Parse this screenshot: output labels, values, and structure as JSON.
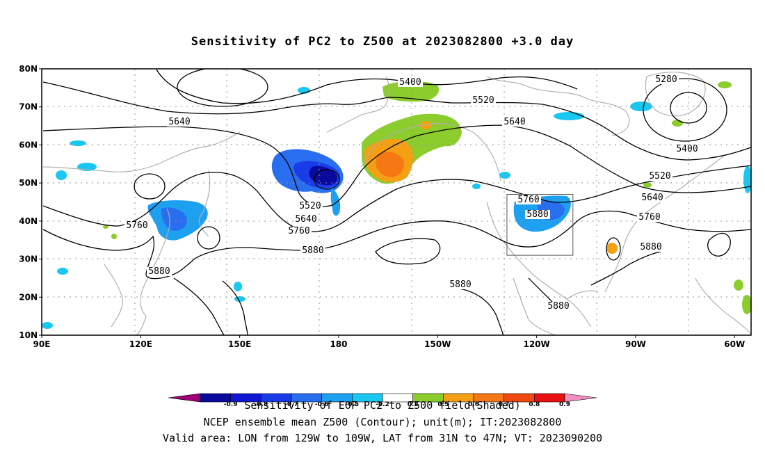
{
  "title": "Sensitivity of PC2 to Z500 at 2023082800 +3.0 day",
  "footer": {
    "line1": "Sensitivity of EOF PC2 to Z500 field(Shaded)",
    "line2": "NCEP ensemble mean Z500 (Contour); unit(m); IT:2023082800",
    "line3": "Valid area: LON from 129W to 109W, LAT from 31N to 47N; VT: 2023090200"
  },
  "map": {
    "lon_labels": [
      "90E",
      "120E",
      "150E",
      "180",
      "150W",
      "120W",
      "90W",
      "60W"
    ],
    "lat_labels": [
      "80N",
      "70N",
      "60N",
      "50N",
      "40N",
      "30N",
      "20N",
      "10N"
    ],
    "contour_labels": [
      "5280",
      "5400",
      "5400",
      "5520",
      "5520",
      "5520",
      "5640",
      "5640",
      "5640",
      "5640",
      "5760",
      "5760",
      "5760",
      "5760",
      "5880",
      "5880",
      "5880",
      "5880",
      "5880",
      "5880"
    ],
    "valid_box": {
      "lon_min": -129,
      "lon_max": -109,
      "lat_min": 31,
      "lat_max": 47
    }
  },
  "colorbar": {
    "labels": [
      "-0.9",
      "-0.8",
      "-0.7",
      "-0.6",
      "-0.5",
      "-0.2",
      "0.2",
      "0.5",
      "0.6",
      "0.7",
      "0.8",
      "0.9"
    ],
    "colors": [
      "#a0007a",
      "#0a0a9e",
      "#1018d4",
      "#1a3ce8",
      "#2a6ef0",
      "#1ea0f0",
      "#18c8f0",
      "#ffffff",
      "#8ccc2c",
      "#f5a014",
      "#f57814",
      "#f04a10",
      "#e81010",
      "#f090c0"
    ]
  },
  "colors": {
    "contour": "#000000",
    "coast": "#b0b0b0",
    "grid": "#909090"
  }
}
